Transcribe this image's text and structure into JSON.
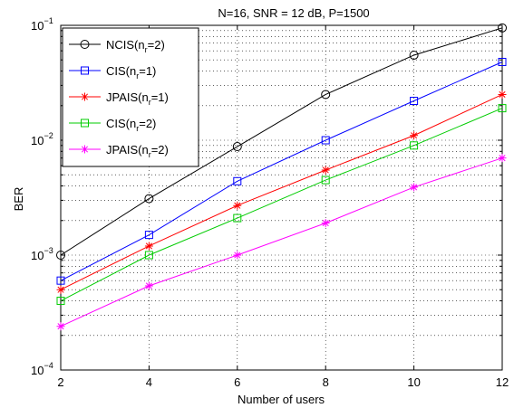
{
  "chart_data": {
    "type": "line",
    "title": "N=16, SNR = 12 dB, P=1500",
    "xlabel": "Number of users",
    "ylabel": "BER",
    "x": [
      2,
      4,
      6,
      8,
      10,
      12
    ],
    "xlim": [
      2,
      12
    ],
    "ylim": [
      0.0001,
      0.1
    ],
    "yscale": "log",
    "grid": true,
    "legend_position": "top-left",
    "x_tick_labels": [
      "2",
      "4",
      "6",
      "8",
      "10",
      "12"
    ],
    "y_ticks": [
      {
        "value": 0.0001,
        "base": "10",
        "exp": "−4"
      },
      {
        "value": 0.001,
        "base": "10",
        "exp": "−3"
      },
      {
        "value": 0.01,
        "base": "10",
        "exp": "−2"
      },
      {
        "value": 0.1,
        "base": "10",
        "exp": "−1"
      }
    ],
    "series": [
      {
        "name": "NCIS(n_r=2)",
        "label_main": "NCIS(n",
        "label_sub": "r",
        "label_end": "=2)",
        "color": "#000000",
        "marker": "circle",
        "values": [
          0.001,
          0.0031,
          0.0088,
          0.025,
          0.055,
          0.095
        ]
      },
      {
        "name": "CIS(n_r=1)",
        "label_main": "CIS(n",
        "label_sub": "r",
        "label_end": "=1)",
        "color": "#0000ff",
        "marker": "square",
        "values": [
          0.0006,
          0.0015,
          0.0044,
          0.01,
          0.022,
          0.048
        ]
      },
      {
        "name": "JPAIS(n_r=1)",
        "label_main": "JPAIS(n",
        "label_sub": "r",
        "label_end": "=1)",
        "color": "#ff0000",
        "marker": "star",
        "values": [
          0.0005,
          0.0012,
          0.0027,
          0.0055,
          0.011,
          0.025
        ]
      },
      {
        "name": "CIS(n_r=2)",
        "label_main": "CIS(n",
        "label_sub": "r",
        "label_end": "=2)",
        "color": "#00cc00",
        "marker": "square",
        "values": [
          0.0004,
          0.001,
          0.0021,
          0.0045,
          0.009,
          0.019
        ]
      },
      {
        "name": "JPAIS(n_r=2)",
        "label_main": "JPAIS(n",
        "label_sub": "r",
        "label_end": "=2)",
        "color": "#ff00ff",
        "marker": "star",
        "values": [
          0.00024,
          0.00054,
          0.001,
          0.0019,
          0.0039,
          0.007
        ]
      }
    ]
  }
}
